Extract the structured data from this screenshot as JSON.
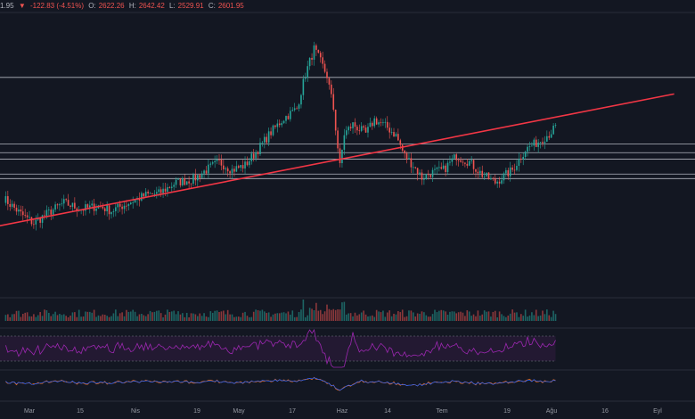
{
  "legend": {
    "last": "1.95",
    "change_arrow": "▼",
    "change": "-122.83 (-4.51%)",
    "open_label": "O:",
    "open": "2622.26",
    "high_label": "H:",
    "high": "2642.42",
    "low_label": "L:",
    "low": "2529.91",
    "close_label": "C:",
    "close": "2601.95"
  },
  "xaxis": {
    "labels": [
      "Mar",
      "15",
      "Nis",
      "19",
      "May",
      "17",
      "Haz",
      "14",
      "Tem",
      "19",
      "Ağu",
      "16",
      "Eyl"
    ]
  },
  "colors": {
    "background": "#131722",
    "up": "#26a69a",
    "down": "#ef5350",
    "trendline": "#f23645",
    "levels": "#b2b5be",
    "rsi": "#9c27b0",
    "macd": "#2962ff",
    "signal": "#ff6d00"
  },
  "chart_data": {
    "type": "candlestick",
    "price_path": [
      [
        0,
        2150
      ],
      [
        8,
        2050
      ],
      [
        14,
        1990
      ],
      [
        20,
        2050
      ],
      [
        28,
        2120
      ],
      [
        36,
        2080
      ],
      [
        44,
        2100
      ],
      [
        50,
        2070
      ],
      [
        58,
        2120
      ],
      [
        66,
        2170
      ],
      [
        72,
        2180
      ],
      [
        80,
        2250
      ],
      [
        88,
        2270
      ],
      [
        94,
        2330
      ],
      [
        100,
        2380
      ],
      [
        106,
        2330
      ],
      [
        112,
        2360
      ],
      [
        118,
        2460
      ],
      [
        124,
        2570
      ],
      [
        130,
        2660
      ],
      [
        136,
        2720
      ],
      [
        140,
        2940
      ],
      [
        144,
        3100
      ],
      [
        147,
        3020
      ],
      [
        150,
        2930
      ],
      [
        153,
        2720
      ],
      [
        156,
        2350
      ],
      [
        158,
        2560
      ],
      [
        162,
        2620
      ],
      [
        168,
        2560
      ],
      [
        172,
        2650
      ],
      [
        178,
        2600
      ],
      [
        182,
        2550
      ],
      [
        186,
        2420
      ],
      [
        190,
        2360
      ],
      [
        194,
        2280
      ],
      [
        198,
        2310
      ],
      [
        204,
        2330
      ],
      [
        210,
        2420
      ],
      [
        216,
        2380
      ],
      [
        222,
        2300
      ],
      [
        228,
        2250
      ],
      [
        236,
        2330
      ],
      [
        242,
        2460
      ],
      [
        248,
        2510
      ],
      [
        253,
        2560
      ],
      [
        256,
        2600
      ]
    ],
    "levels": [
      2919.48,
      2494.65,
      2440.12,
      2398.31,
      2303.51,
      2274.9
    ],
    "trendline": [
      [
        -2,
        1973.53
      ],
      [
        311,
        2814.05
      ]
    ],
    "panes": [
      "price",
      "volume",
      "rsi",
      "macd"
    ]
  }
}
